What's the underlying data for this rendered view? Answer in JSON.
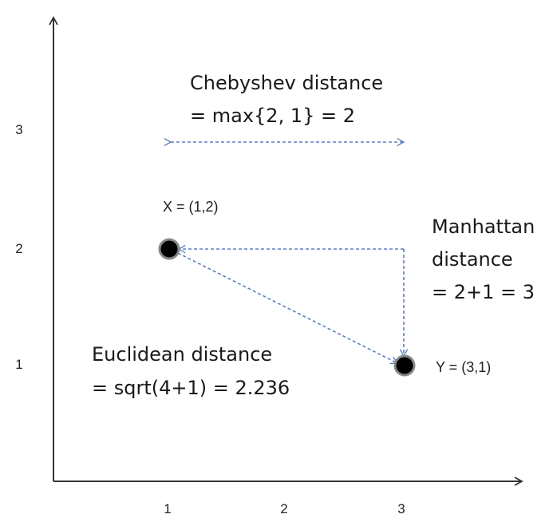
{
  "x_ticks": [
    "1",
    "2",
    "3"
  ],
  "y_ticks": [
    "1",
    "2",
    "3"
  ],
  "points": [
    {
      "label": "X = (1,2)",
      "x": 1,
      "y": 2
    },
    {
      "label": "Y = (3,1)",
      "x": 3,
      "y": 1
    }
  ],
  "annotations": {
    "chebyshev": {
      "line1": "Chebyshev distance",
      "line2": "= max{2, 1} = 2"
    },
    "manhattan": {
      "line1": "Manhattan",
      "line2": "distance",
      "line3": "= 2+1 = 3"
    },
    "euclidean": {
      "line1": "Euclidean distance",
      "line2": "= sqrt(4+1) = 2.236"
    }
  },
  "colors": {
    "axis": "#333333",
    "dashed": "#5b7fc2",
    "point": "#000000",
    "point_ring": "#888888"
  }
}
